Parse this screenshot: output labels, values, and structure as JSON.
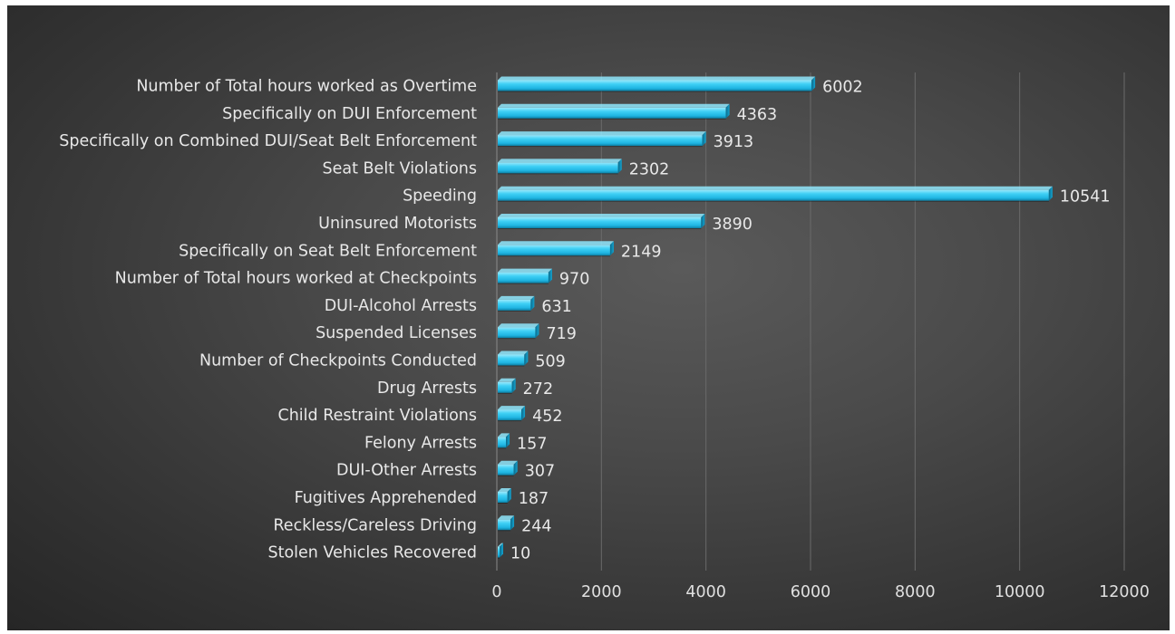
{
  "chart_data": {
    "type": "bar",
    "orientation": "horizontal",
    "title": "",
    "xlabel": "",
    "ylabel": "",
    "xlim": [
      0,
      12000
    ],
    "ticks": [
      0,
      2000,
      4000,
      6000,
      8000,
      10000,
      12000
    ],
    "grid": "vertical",
    "legend": "none",
    "colors": {
      "bar": "#29c4ee",
      "bar_dark": "#0e7fa3",
      "bar_light": "#8fe6fb",
      "background": "#454545",
      "gridline": "#6a6a6a",
      "text": "#e8e8e8"
    },
    "categories": [
      "Number of Total hours worked as Overtime",
      "Specifically on DUI Enforcement",
      "Specifically on Combined DUI/Seat Belt Enforcement",
      "Seat Belt Violations",
      "Speeding",
      "Uninsured Motorists",
      "Specifically on Seat Belt Enforcement",
      "Number of Total hours worked at Checkpoints",
      "DUI-Alcohol Arrests",
      "Suspended Licenses",
      "Number of Checkpoints Conducted",
      "Drug Arrests",
      "Child Restraint Violations",
      "Felony Arrests",
      "DUI-Other Arrests",
      "Fugitives Apprehended",
      "Reckless/Careless Driving",
      "Stolen Vehicles Recovered"
    ],
    "values": [
      6002,
      4363,
      3913,
      2302,
      10541,
      3890,
      2149,
      970,
      631,
      719,
      509,
      272,
      452,
      157,
      307,
      187,
      244,
      10
    ]
  }
}
